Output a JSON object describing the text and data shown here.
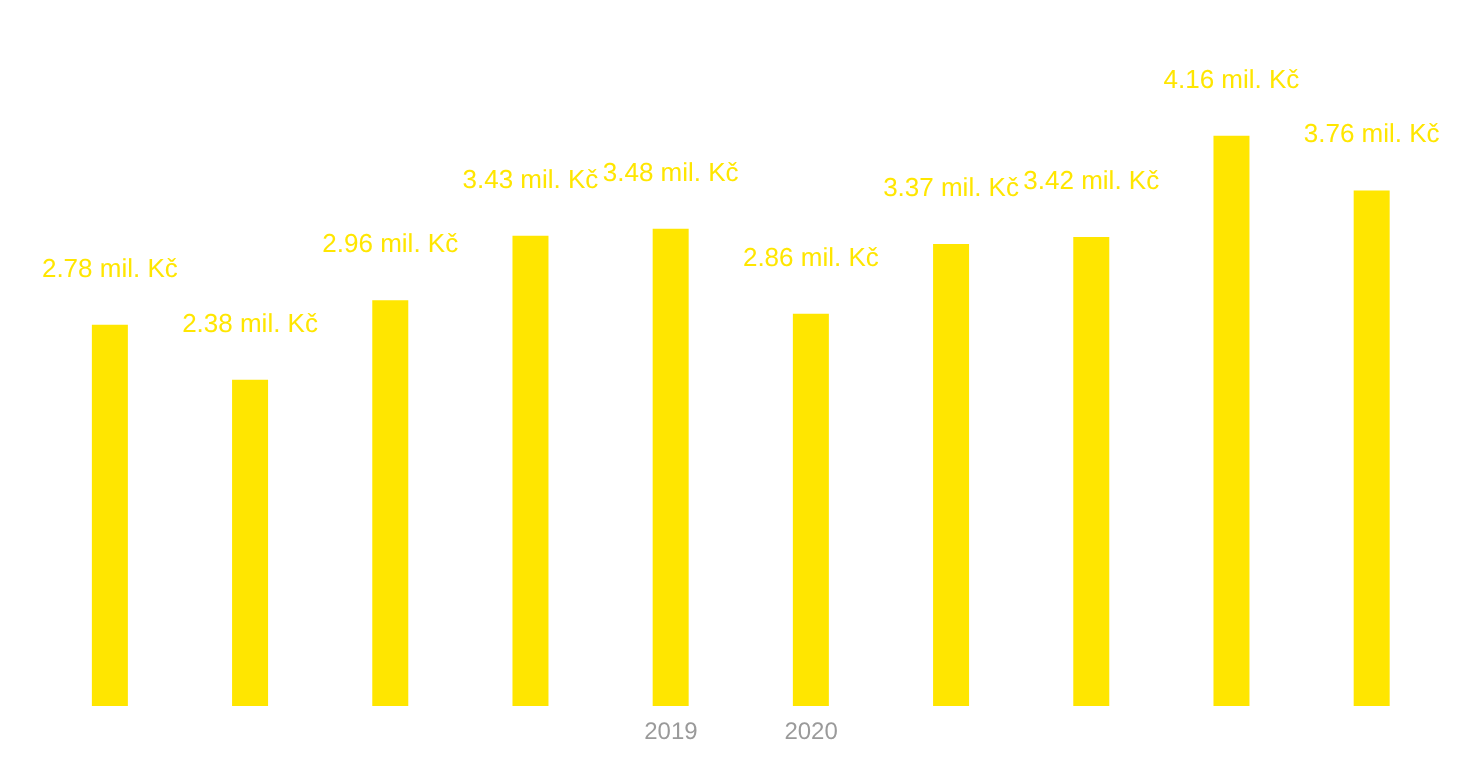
{
  "chart_data": {
    "type": "bar",
    "categories": [
      null,
      null,
      null,
      null,
      "2019",
      "2020",
      null,
      null,
      null,
      null
    ],
    "values": [
      2.78,
      2.38,
      2.96,
      3.43,
      3.48,
      2.86,
      3.37,
      3.42,
      4.16,
      3.76
    ],
    "value_labels": [
      "2.78 mil. Kč",
      "2.38 mil. Kč",
      "2.96 mil. Kč",
      "3.43 mil. Kč",
      "3.48 mil. Kč",
      "2.86 mil. Kč",
      "3.37 mil. Kč",
      "3.42 mil. Kč",
      "4.16 mil. Kč",
      "3.76 mil. Kč"
    ],
    "color": "#ffe600",
    "grid": false,
    "legend": false
  }
}
